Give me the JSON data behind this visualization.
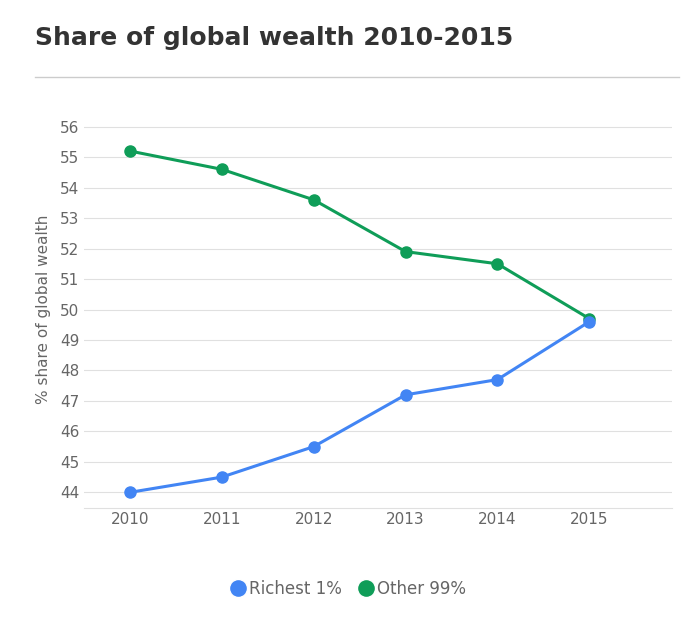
{
  "title": "Share of global wealth 2010-2015",
  "ylabel": "% share of global wealth",
  "years": [
    2010,
    2011,
    2012,
    2013,
    2014,
    2015
  ],
  "richest1_values": [
    44.0,
    44.5,
    45.5,
    47.2,
    47.7,
    49.6
  ],
  "other99_values": [
    55.2,
    54.6,
    53.6,
    51.9,
    51.5,
    49.7
  ],
  "richest1_color": "#4285f4",
  "other99_color": "#0f9d58",
  "line_width": 2.2,
  "marker_size": 8,
  "ylim": [
    43.5,
    56.5
  ],
  "yticks": [
    44,
    45,
    46,
    47,
    48,
    49,
    50,
    51,
    52,
    53,
    54,
    55,
    56
  ],
  "background_color": "#ffffff",
  "title_fontsize": 18,
  "title_color": "#333333",
  "legend_labels": [
    "Richest 1%",
    "Other 99%"
  ],
  "legend_fontsize": 12,
  "axis_label_fontsize": 11,
  "tick_fontsize": 11,
  "tick_color": "#666666",
  "grid_color": "#e0e0e0",
  "separator_color": "#cccccc"
}
